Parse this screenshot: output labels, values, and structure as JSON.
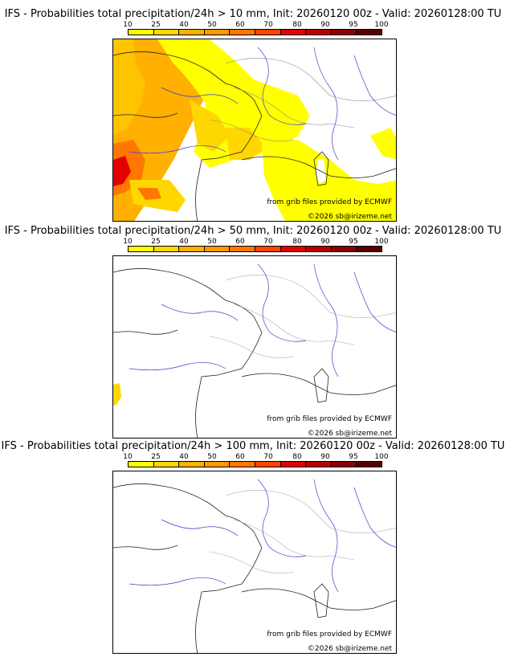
{
  "legend": {
    "ticks": [
      "10",
      "25",
      "40",
      "50",
      "60",
      "70",
      "80",
      "90",
      "95",
      "100"
    ],
    "colors": [
      "#ffff00",
      "#ffd700",
      "#ffb000",
      "#ff9900",
      "#ff7700",
      "#ff4400",
      "#e30000",
      "#b80000",
      "#8b0000",
      "#5a0000"
    ]
  },
  "panels": [
    {
      "title": "IFS - Probabilities total precipitation/24h > 10 mm, Init: 20260120 00z - Valid: 20260128:00 TU",
      "credit_source": "from grib files provided by ECMWF",
      "credit_copyright": "©2026 sb@irizeme.net"
    },
    {
      "title": "IFS - Probabilities total precipitation/24h > 50 mm, Init: 20260120 00z - Valid: 20260128:00 TU",
      "credit_source": "from grib files provided by ECMWF",
      "credit_copyright": "©2026 sb@irizeme.net"
    },
    {
      "title": "IFS - Probabilities total precipitation/24h > 100 mm, Init: 20260120 00z - Valid: 20260128:00 TU",
      "credit_source": "from grib files provided by ECMWF",
      "credit_copyright": "©2026 sb@irizeme.net"
    }
  ]
}
